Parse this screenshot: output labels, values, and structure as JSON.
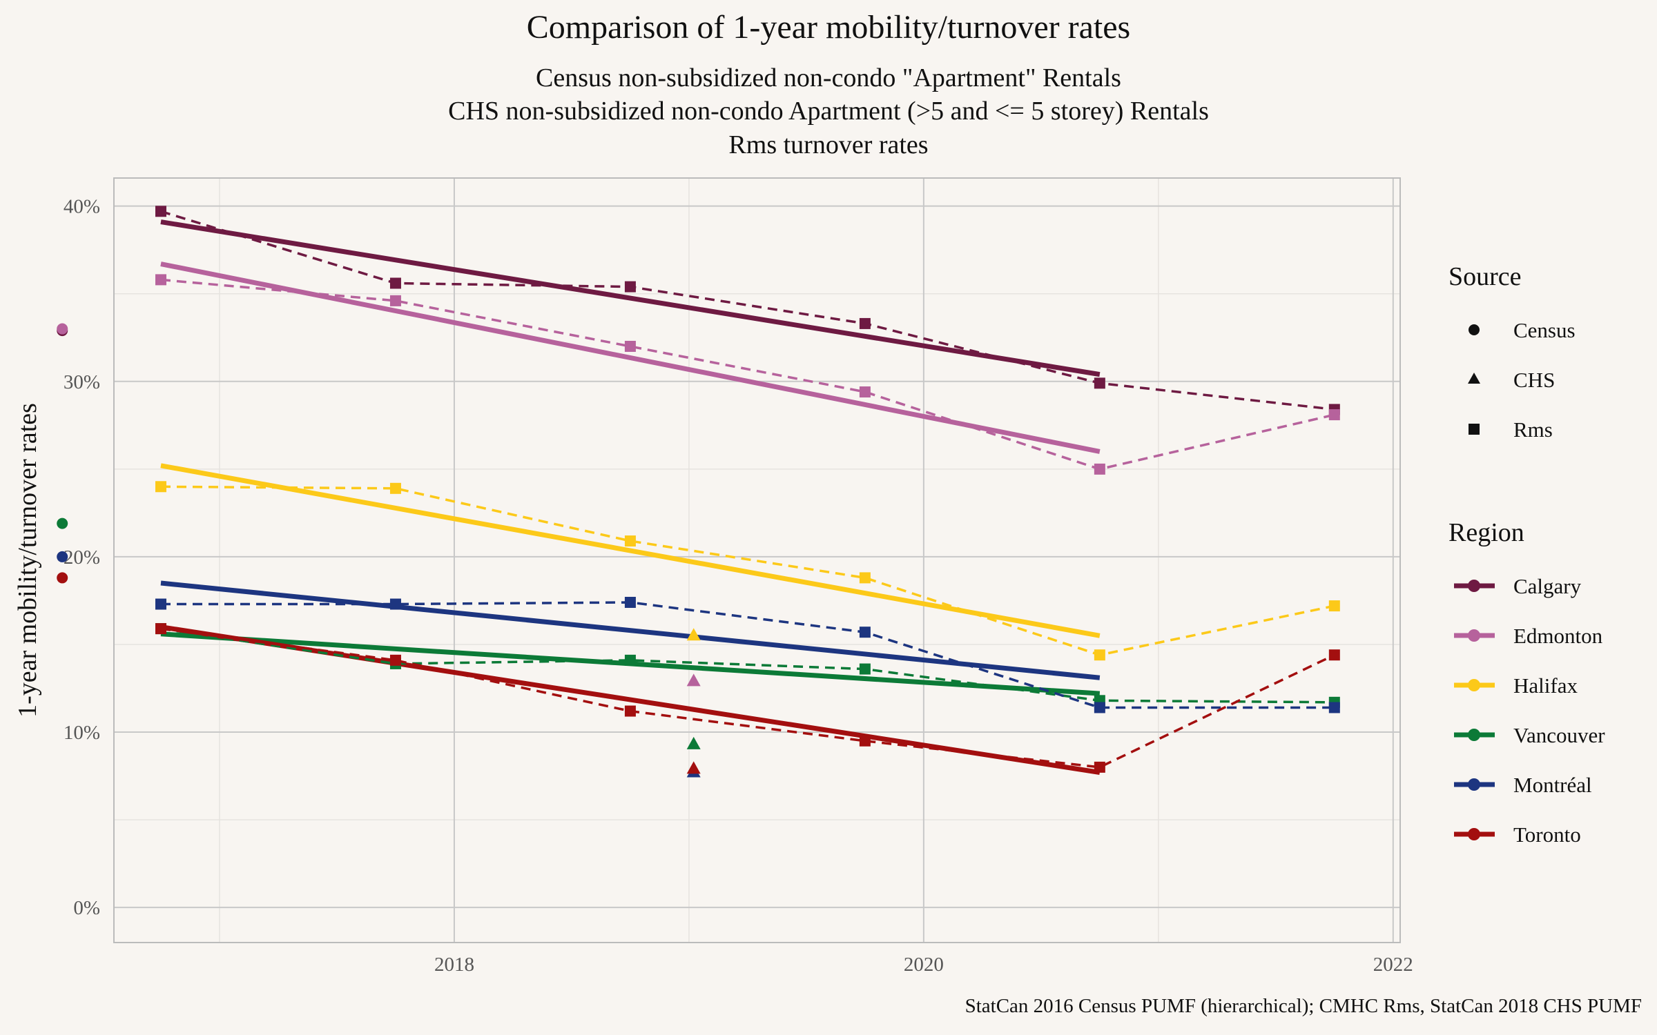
{
  "title": "Comparison of 1-year mobility/turnover rates",
  "subtitle_lines": [
    "Census non-subsidized non-condo \"Apartment\" Rentals",
    "CHS non-subsidized non-condo Apartment (>5 and <= 5 storey) Rentals",
    "Rms turnover rates"
  ],
  "caption": "StatCan 2016 Census PUMF (hierarchical); CMHC Rms, StatCan 2018 CHS PUMF",
  "chart_data": {
    "type": "line",
    "ylabel": "1-year mobility/turnover rates",
    "xlabel": "",
    "xlim": [
      2016.55,
      2022.03
    ],
    "ylim": [
      -0.02,
      0.416
    ],
    "x_ticks": [
      2018,
      2020,
      2022
    ],
    "x_tick_labels": [
      "2018",
      "2020",
      "2022"
    ],
    "y_ticks": [
      0,
      0.1,
      0.2,
      0.3,
      0.4
    ],
    "y_tick_labels": [
      "0%",
      "10%",
      "20%",
      "30%",
      "40%"
    ],
    "grid": true,
    "legend_position": "right",
    "source_legend": {
      "title": "Source",
      "items": [
        {
          "label": "Census",
          "shape": "circle"
        },
        {
          "label": "CHS",
          "shape": "triangle"
        },
        {
          "label": "Rms",
          "shape": "square"
        }
      ]
    },
    "region_legend": {
      "title": "Region",
      "items": [
        "Calgary",
        "Edmonton",
        "Halifax",
        "Vancouver",
        "Montréal",
        "Toronto"
      ]
    },
    "series": [
      {
        "name": "Calgary",
        "color": "#6e1a42",
        "census": {
          "x": 2016.33,
          "y": 0.329
        },
        "chs": null,
        "rms": {
          "x": [
            2016.75,
            2017.75,
            2018.75,
            2019.75,
            2020.75,
            2021.75
          ],
          "y": [
            0.397,
            0.356,
            0.354,
            0.333,
            0.299,
            0.284
          ]
        },
        "trend": {
          "x": [
            2016.75,
            2020.75
          ],
          "y": [
            0.391,
            0.304
          ]
        }
      },
      {
        "name": "Edmonton",
        "color": "#b6629c",
        "census": {
          "x": 2016.33,
          "y": 0.33
        },
        "chs": {
          "x": 2019.02,
          "y": 0.129
        },
        "rms": {
          "x": [
            2016.75,
            2017.75,
            2018.75,
            2019.75,
            2020.75,
            2021.75
          ],
          "y": [
            0.358,
            0.346,
            0.32,
            0.294,
            0.25,
            0.281
          ]
        },
        "trend": {
          "x": [
            2016.75,
            2020.75
          ],
          "y": [
            0.367,
            0.26
          ]
        }
      },
      {
        "name": "Halifax",
        "color": "#fcc919",
        "census": null,
        "chs": {
          "x": 2019.02,
          "y": 0.155
        },
        "rms": {
          "x": [
            2016.75,
            2017.75,
            2018.75,
            2019.75,
            2020.75,
            2021.75
          ],
          "y": [
            0.24,
            0.239,
            0.209,
            0.188,
            0.144,
            0.172
          ]
        },
        "trend": {
          "x": [
            2016.75,
            2020.75
          ],
          "y": [
            0.252,
            0.155
          ]
        }
      },
      {
        "name": "Vancouver",
        "color": "#0c7a37",
        "census": {
          "x": 2016.33,
          "y": 0.219
        },
        "chs": {
          "x": 2019.02,
          "y": 0.093
        },
        "rms": {
          "x": [
            2016.75,
            2017.75,
            2018.75,
            2019.75,
            2020.75,
            2021.75
          ],
          "y": [
            0.159,
            0.139,
            0.141,
            0.136,
            0.118,
            0.117
          ]
        },
        "trend": {
          "x": [
            2016.75,
            2020.75
          ],
          "y": [
            0.156,
            0.122
          ]
        }
      },
      {
        "name": "Montréal",
        "color": "#1d3580",
        "census": {
          "x": 2016.33,
          "y": 0.2
        },
        "chs": {
          "x": 2019.02,
          "y": 0.077
        },
        "rms": {
          "x": [
            2016.75,
            2017.75,
            2018.75,
            2019.75,
            2020.75,
            2021.75
          ],
          "y": [
            0.173,
            0.173,
            0.174,
            0.157,
            0.114,
            0.114
          ]
        },
        "trend": {
          "x": [
            2016.75,
            2020.75
          ],
          "y": [
            0.185,
            0.131
          ]
        }
      },
      {
        "name": "Toronto",
        "color": "#a30f0f",
        "census": {
          "x": 2016.33,
          "y": 0.188
        },
        "chs": {
          "x": 2019.02,
          "y": 0.079
        },
        "rms": {
          "x": [
            2016.75,
            2017.75,
            2018.75,
            2019.75,
            2020.75,
            2021.75
          ],
          "y": [
            0.159,
            0.141,
            0.112,
            0.095,
            0.08,
            0.144
          ]
        },
        "trend": {
          "x": [
            2016.75,
            2020.75
          ],
          "y": [
            0.16,
            0.077
          ]
        }
      }
    ]
  }
}
